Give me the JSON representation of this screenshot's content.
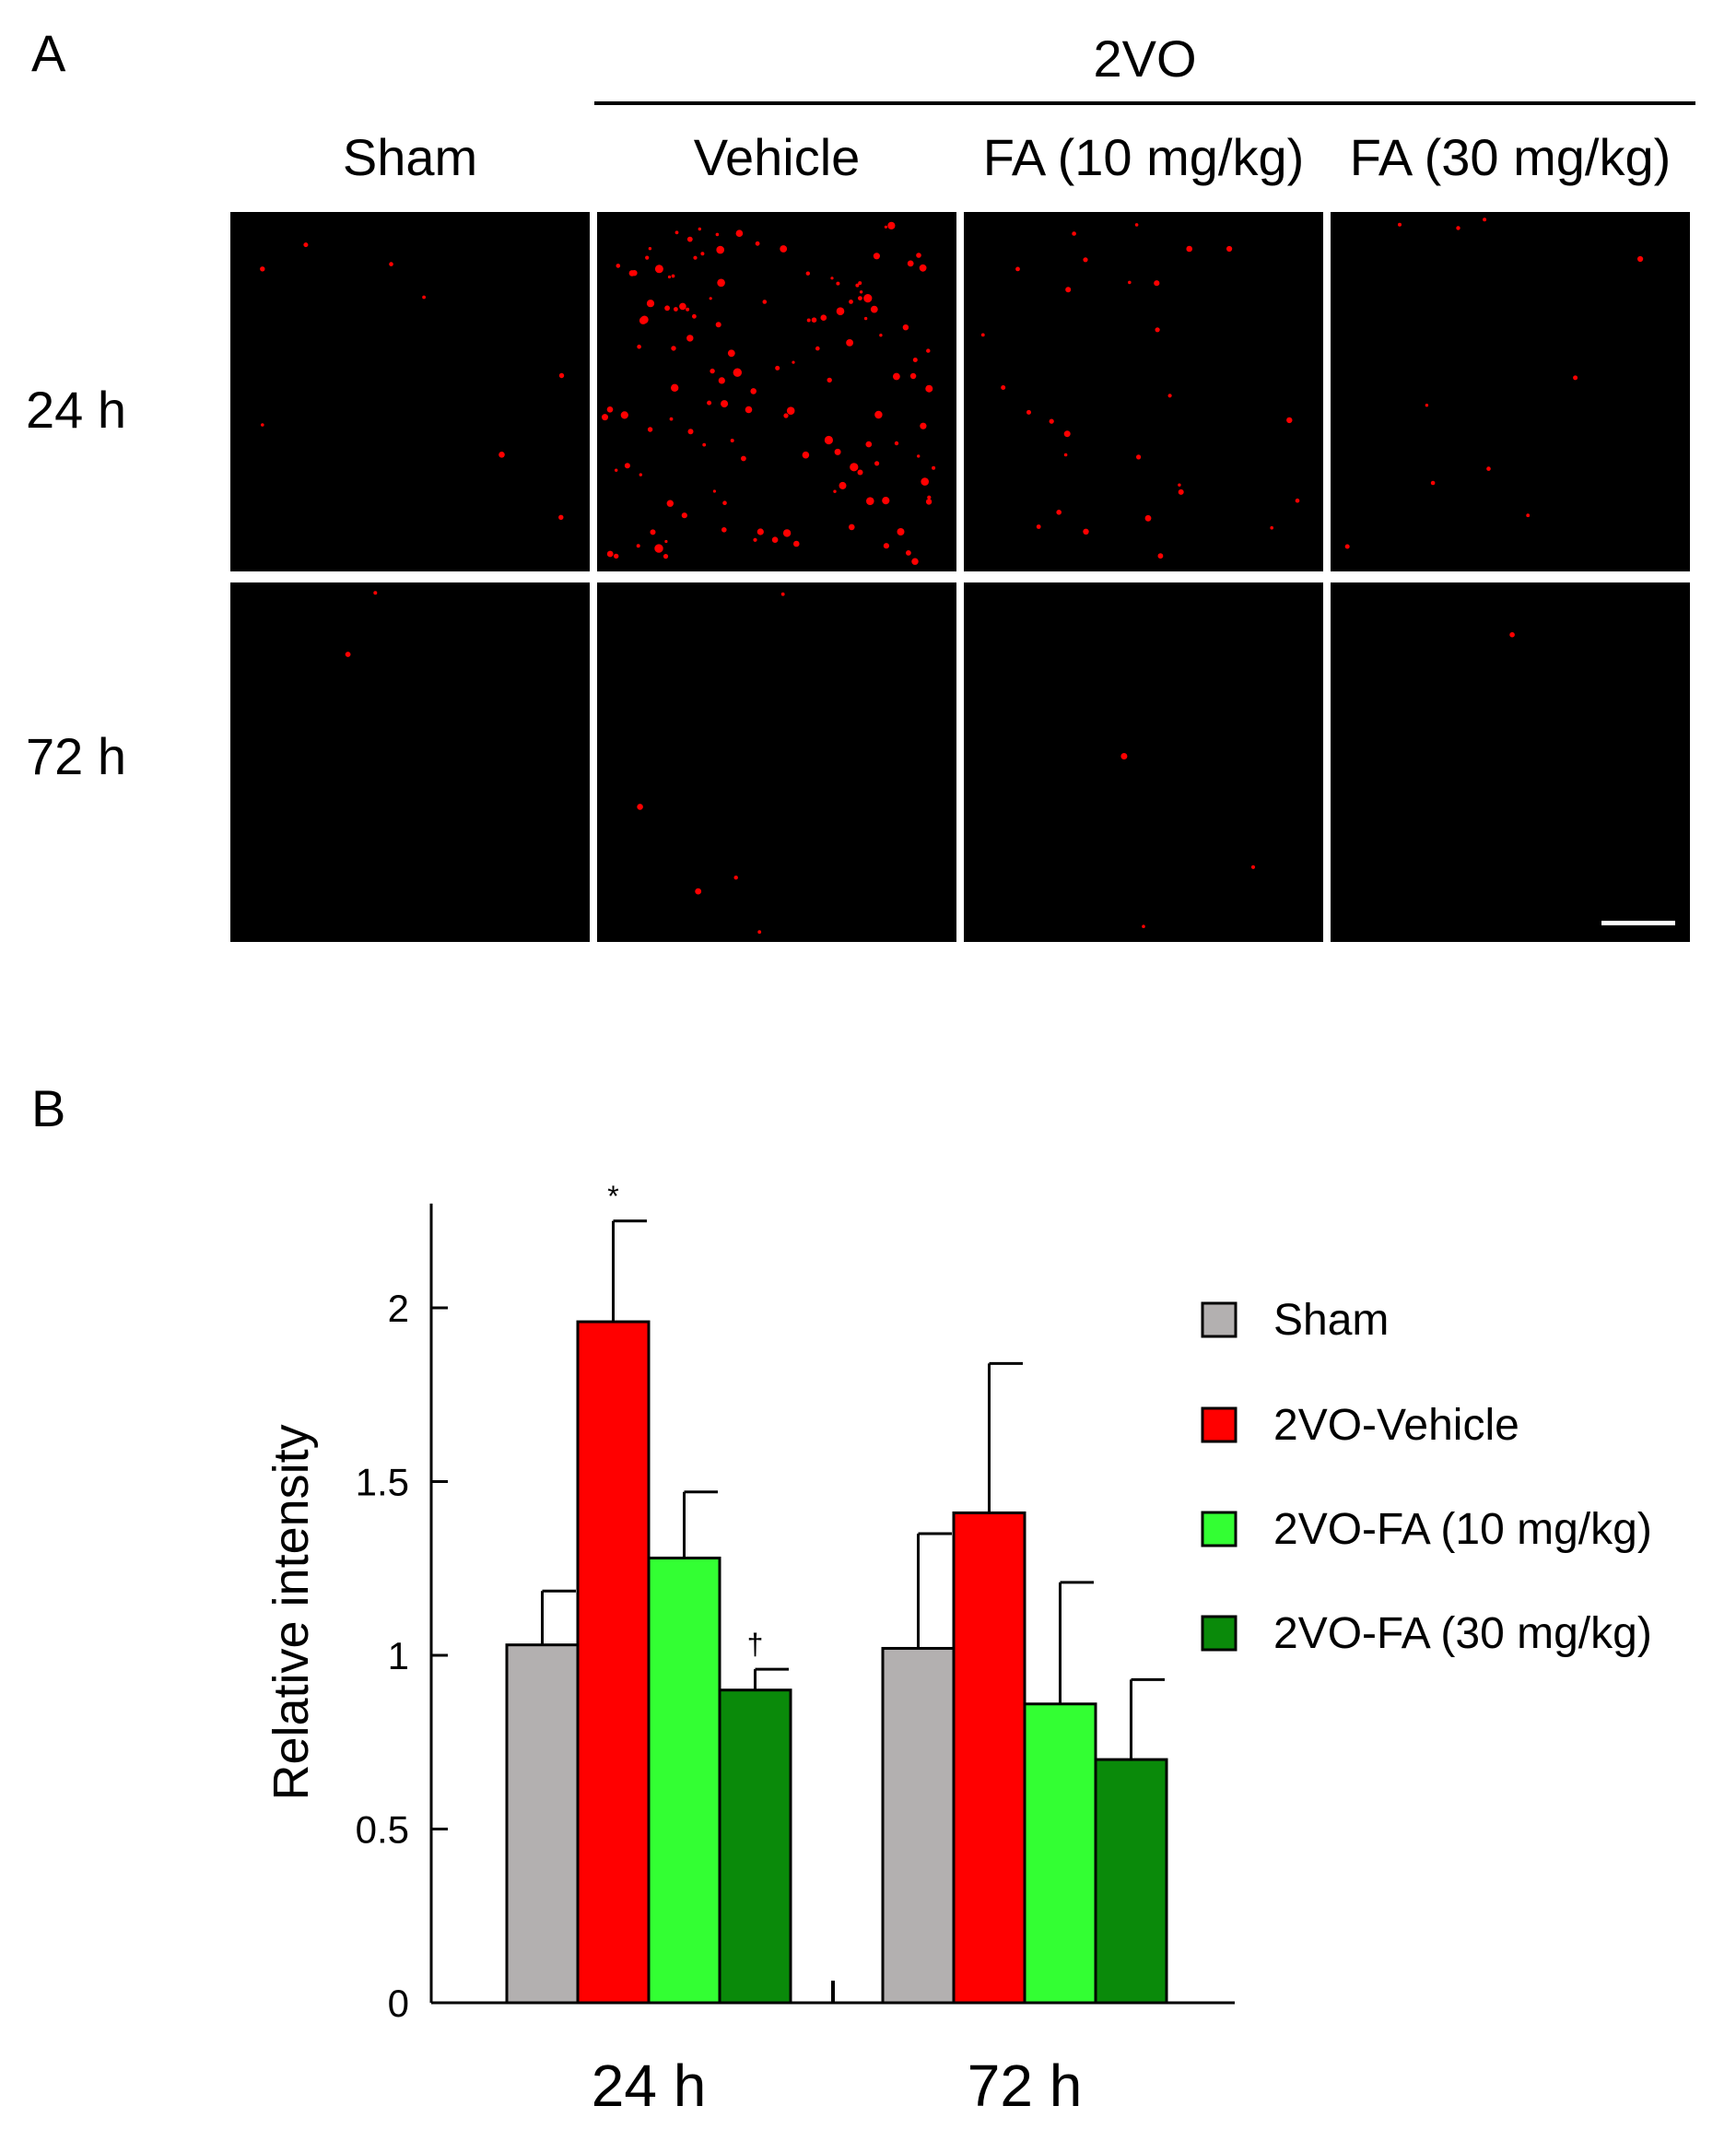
{
  "panel_a": {
    "letter": "A",
    "group_label": "2VO",
    "columns": [
      "Sham",
      "Vehicle",
      "FA (10 mg/kg)",
      "FA (30 mg/kg)"
    ],
    "rows": [
      "24 h",
      "72 h"
    ],
    "colors": {
      "background": "#000000",
      "signal": "#ff0000",
      "scale_bar": "#ffffff"
    }
  },
  "panel_b": {
    "letter": "B"
  },
  "chart_data": {
    "type": "bar",
    "categories": [
      "24 h",
      "72 h"
    ],
    "ylabel": "Relative intensity",
    "xlabel": "",
    "ylim": [
      0,
      2.3
    ],
    "yticks": [
      "0",
      "0.5",
      "1",
      "1.5",
      "2"
    ],
    "yticks_values": [
      0,
      0.5,
      1,
      1.5,
      2
    ],
    "grid": false,
    "legend_position": "right",
    "series": [
      {
        "name": "Sham",
        "color": "#b3b0b0",
        "values": [
          1.03,
          1.02
        ],
        "errors": [
          0.155,
          0.33
        ],
        "marks": [
          "",
          ""
        ]
      },
      {
        "name": "2VO-Vehicle",
        "color": "#ff0000",
        "values": [
          1.96,
          1.41
        ],
        "errors": [
          0.29,
          0.43
        ],
        "marks": [
          "*",
          ""
        ]
      },
      {
        "name": "2VO-FA (10 mg/kg)",
        "color": "#33ff33",
        "values": [
          1.28,
          0.86
        ],
        "errors": [
          0.19,
          0.35
        ],
        "marks": [
          "",
          ""
        ]
      },
      {
        "name": "2VO-FA (30 mg/kg)",
        "color": "#0a8a0a",
        "values": [
          0.9,
          0.7
        ],
        "errors": [
          0.06,
          0.23
        ],
        "marks": [
          "†",
          ""
        ]
      }
    ]
  }
}
